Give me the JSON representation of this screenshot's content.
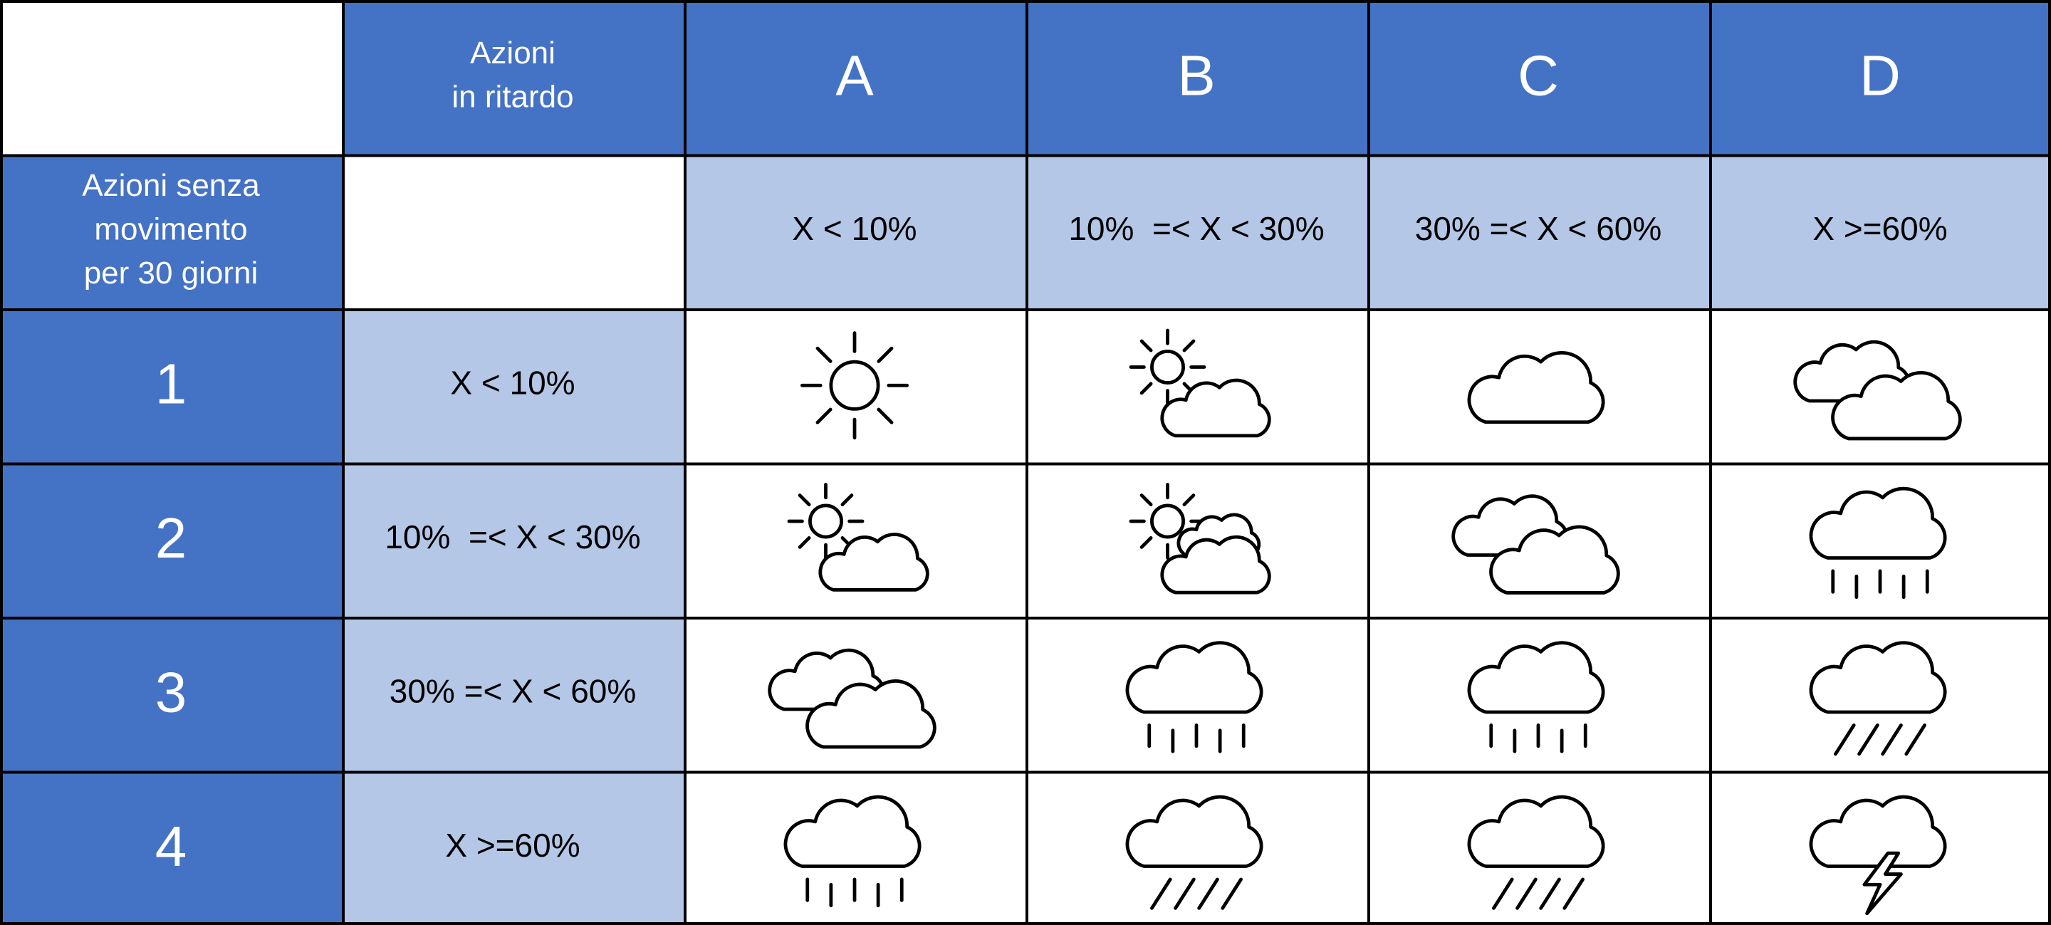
{
  "table": {
    "column_header": {
      "lines": [
        "Azioni",
        "in ritardo"
      ]
    },
    "row_header": {
      "lines": [
        "Azioni senza",
        "movimento",
        "per 30 giorni"
      ]
    },
    "columns": [
      {
        "label": "A",
        "range": "X < 10%"
      },
      {
        "label": "B",
        "range": "10%  =< X < 30%"
      },
      {
        "label": "C",
        "range": "30% =< X < 60%"
      },
      {
        "label": "D",
        "range": "X >=60%"
      }
    ],
    "rows": [
      {
        "label": "1",
        "range": "X < 10%"
      },
      {
        "label": "2",
        "range": "10%  =< X < 30%"
      },
      {
        "label": "3",
        "range": "30% =< X < 60%"
      },
      {
        "label": "4",
        "range": "X >=60%"
      }
    ]
  }
}
